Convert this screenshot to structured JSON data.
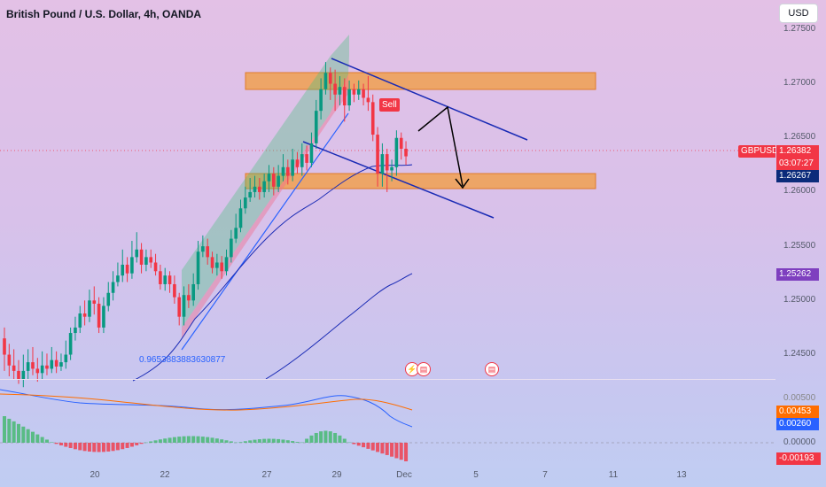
{
  "header": {
    "title": "British Pound / U.S. Dollar, 4h, OANDA",
    "currency": "USD"
  },
  "price_axis": {
    "labels": [
      "1.27500",
      "1.27000",
      "1.26500",
      "1.26000",
      "1.25500",
      "1.25000",
      "1.24500"
    ]
  },
  "tags": {
    "symbol": "GBPUSD",
    "last_price": "1.26382",
    "countdown": "03:07:27",
    "level_1": "1.26267",
    "level_2": "1.25262"
  },
  "sell_signal": "Sell",
  "fib_label": "0.9653883883630877",
  "indicator": {
    "labels": [
      "0.00453",
      "0.00260",
      "0.00000",
      "-0.00193"
    ],
    "axis_top_partial": "0.00500"
  },
  "time_axis": {
    "labels": [
      "20",
      "22",
      "27",
      "29",
      "Dec",
      "5",
      "7",
      "11",
      "13"
    ]
  },
  "colors": {
    "up": "#089981",
    "down": "#f23645",
    "zone": "#f0a050",
    "trendline": "#1a2bb5",
    "macd": "#2962ff",
    "signal": "#ff6d00",
    "purple_tag": "#7e3fbf",
    "navy_tag": "#0b2b7a"
  },
  "chart_data": {
    "type": "candlestick",
    "symbol": "GBPUSD",
    "timeframe": "4h",
    "y_range": [
      1.2435,
      1.277
    ],
    "last_price": 1.26382,
    "horizontal_levels": [
      1.26267,
      1.25262
    ],
    "zones": [
      [
        1.2693,
        1.2708
      ],
      [
        1.2605,
        1.2619
      ]
    ],
    "x_labels": [
      "20",
      "22",
      "27",
      "29",
      "Dec",
      "5",
      "7",
      "11",
      "13"
    ],
    "candles": [
      [
        1.247,
        1.2455,
        1.248,
        1.244
      ],
      [
        1.2455,
        1.2445,
        1.2465,
        1.2435
      ],
      [
        1.2445,
        1.244,
        1.246,
        1.2432
      ],
      [
        1.244,
        1.2432,
        1.245,
        1.2428
      ],
      [
        1.2432,
        1.244,
        1.2455,
        1.2425
      ],
      [
        1.244,
        1.2448,
        1.246,
        1.2432
      ],
      [
        1.2448,
        1.2442,
        1.2462,
        1.2436
      ],
      [
        1.2442,
        1.2438,
        1.2452,
        1.243
      ],
      [
        1.2438,
        1.2445,
        1.2458,
        1.2432
      ],
      [
        1.2445,
        1.2442,
        1.2456,
        1.2436
      ],
      [
        1.2442,
        1.245,
        1.2462,
        1.2438
      ],
      [
        1.245,
        1.2444,
        1.2458,
        1.2438
      ],
      [
        1.2444,
        1.2448,
        1.2456,
        1.244
      ],
      [
        1.2448,
        1.2455,
        1.2468,
        1.2442
      ],
      [
        1.2455,
        1.2475,
        1.248,
        1.245
      ],
      [
        1.2475,
        1.248,
        1.249,
        1.2468
      ],
      [
        1.248,
        1.2493,
        1.25,
        1.2475
      ],
      [
        1.2493,
        1.249,
        1.2505,
        1.2482
      ],
      [
        1.249,
        1.2505,
        1.2515,
        1.2485
      ],
      [
        1.2505,
        1.2502,
        1.2518,
        1.2492
      ],
      [
        1.2502,
        1.248,
        1.2508,
        1.2475
      ],
      [
        1.248,
        1.25,
        1.2508,
        1.2475
      ],
      [
        1.25,
        1.2512,
        1.2522,
        1.2495
      ],
      [
        1.2512,
        1.2522,
        1.2532,
        1.2505
      ],
      [
        1.2522,
        1.2528,
        1.254,
        1.2518
      ],
      [
        1.2528,
        1.2538,
        1.2552,
        1.2522
      ],
      [
        1.2538,
        1.253,
        1.2545,
        1.2522
      ],
      [
        1.253,
        1.2545,
        1.256,
        1.2525
      ],
      [
        1.2545,
        1.2552,
        1.2568,
        1.254
      ],
      [
        1.2552,
        1.2538,
        1.2558,
        1.253
      ],
      [
        1.2538,
        1.2545,
        1.2552,
        1.2532
      ],
      [
        1.2545,
        1.254,
        1.2552,
        1.2535
      ],
      [
        1.254,
        1.2532,
        1.2548,
        1.2528
      ],
      [
        1.2532,
        1.252,
        1.2538,
        1.2515
      ],
      [
        1.252,
        1.2528,
        1.2535,
        1.2514
      ],
      [
        1.2528,
        1.252,
        1.2532,
        1.2512
      ],
      [
        1.252,
        1.2508,
        1.2528,
        1.2502
      ],
      [
        1.2508,
        1.249,
        1.2512,
        1.2482
      ],
      [
        1.249,
        1.251,
        1.2518,
        1.2482
      ],
      [
        1.251,
        1.2505,
        1.252,
        1.2498
      ],
      [
        1.2505,
        1.252,
        1.253,
        1.25
      ],
      [
        1.252,
        1.255,
        1.256,
        1.2515
      ],
      [
        1.255,
        1.2555,
        1.2565,
        1.2545
      ],
      [
        1.2555,
        1.2545,
        1.2562,
        1.2538
      ],
      [
        1.2545,
        1.2535,
        1.255,
        1.253
      ],
      [
        1.2535,
        1.254,
        1.2548,
        1.2528
      ],
      [
        1.254,
        1.2532,
        1.2546,
        1.2525
      ],
      [
        1.2532,
        1.2545,
        1.2552,
        1.2528
      ],
      [
        1.2545,
        1.2562,
        1.257,
        1.254
      ],
      [
        1.2562,
        1.2572,
        1.2585,
        1.2558
      ],
      [
        1.2572,
        1.259,
        1.2598,
        1.2568
      ],
      [
        1.259,
        1.26,
        1.261,
        1.2585
      ],
      [
        1.26,
        1.2605,
        1.2618,
        1.2596
      ],
      [
        1.2605,
        1.261,
        1.262,
        1.26
      ],
      [
        1.261,
        1.2605,
        1.2618,
        1.2598
      ],
      [
        1.2605,
        1.2615,
        1.2622,
        1.26
      ],
      [
        1.2615,
        1.2622,
        1.263,
        1.2605
      ],
      [
        1.2622,
        1.261,
        1.2628,
        1.2602
      ],
      [
        1.261,
        1.262,
        1.263,
        1.2605
      ],
      [
        1.262,
        1.2628,
        1.264,
        1.2615
      ],
      [
        1.2628,
        1.262,
        1.2635,
        1.2612
      ],
      [
        1.262,
        1.2635,
        1.2645,
        1.2615
      ],
      [
        1.2635,
        1.2628,
        1.2642,
        1.2622
      ],
      [
        1.2628,
        1.264,
        1.265,
        1.262
      ],
      [
        1.264,
        1.2632,
        1.2648,
        1.2625
      ],
      [
        1.2632,
        1.265,
        1.266,
        1.2628
      ],
      [
        1.265,
        1.268,
        1.269,
        1.2645
      ],
      [
        1.268,
        1.27,
        1.271,
        1.2672
      ],
      [
        1.27,
        1.2715,
        1.2725,
        1.2695
      ],
      [
        1.2715,
        1.2705,
        1.272,
        1.269
      ],
      [
        1.2705,
        1.2695,
        1.2718,
        1.268
      ],
      [
        1.2695,
        1.2702,
        1.2712,
        1.2685
      ],
      [
        1.2702,
        1.2685,
        1.271,
        1.267
      ],
      [
        1.2685,
        1.27,
        1.2708,
        1.268
      ],
      [
        1.27,
        1.2695,
        1.2705,
        1.2688
      ],
      [
        1.2695,
        1.27,
        1.2708,
        1.269
      ],
      [
        1.27,
        1.2692,
        1.2705,
        1.2685
      ],
      [
        1.2692,
        1.2688,
        1.2712,
        1.268
      ],
      [
        1.2688,
        1.2658,
        1.2695,
        1.2652
      ],
      [
        1.2658,
        1.2622,
        1.2665,
        1.261
      ],
      [
        1.2622,
        1.264,
        1.265,
        1.261
      ],
      [
        1.264,
        1.2625,
        1.2645,
        1.2605
      ],
      [
        1.2625,
        1.2628,
        1.2635,
        1.2615
      ],
      [
        1.2628,
        1.2655,
        1.2662,
        1.262
      ],
      [
        1.2655,
        1.2645,
        1.266,
        1.2635
      ],
      [
        1.2645,
        1.2638,
        1.2652,
        1.263
      ]
    ],
    "overlays": [
      {
        "name": "ascending-channel",
        "type": "channel"
      },
      {
        "name": "descending-channel",
        "type": "channel"
      },
      {
        "name": "projection-arrow",
        "type": "path"
      }
    ],
    "indicator": {
      "type": "macd",
      "macd": 0.0026,
      "signal": 0.00453,
      "histogram": -0.00193
    }
  }
}
